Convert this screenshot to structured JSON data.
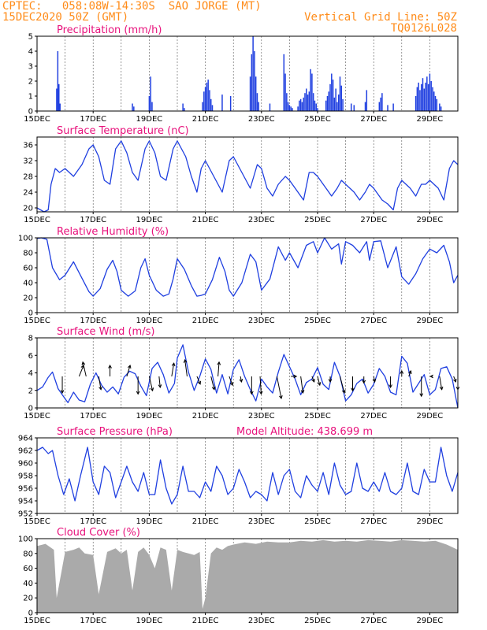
{
  "header": {
    "line1_left": "CPTEC:   058:08W-14:30S  SAO JORGE (MT)",
    "line2_left": "15DEC2020 50Z (GMT)",
    "line1_right": "Vertical Grid Line: 50Z",
    "line2_right": "TQ0126L028"
  },
  "colors": {
    "header": "#ff8c1a",
    "title": "#e8127c",
    "series": "#1f3fe0",
    "cloud": "#aaaaaa",
    "arrow": "#000000"
  },
  "chart_data": [
    {
      "type": "bar",
      "title": "Precipitation (mm/h)",
      "ylim": [
        0,
        5
      ],
      "yticks": [
        0,
        1,
        2,
        3,
        4,
        5
      ],
      "xlim": [
        15,
        30
      ],
      "xtick_labels": [
        "15DEC",
        "17DEC",
        "19DEC",
        "21DEC",
        "23DEC",
        "25DEC",
        "27DEC",
        "29DEC"
      ],
      "xtick_days": [
        15,
        17,
        19,
        21,
        23,
        25,
        27,
        29
      ],
      "bar_width_days": 0.0417,
      "x": [
        15.7,
        15.74,
        15.78,
        15.82,
        18.4,
        18.45,
        19.0,
        19.05,
        19.1,
        20.2,
        20.25,
        20.9,
        20.95,
        21.0,
        21.05,
        21.1,
        21.15,
        21.2,
        21.25,
        21.6,
        21.9,
        22.6,
        22.65,
        22.7,
        22.75,
        22.8,
        22.85,
        22.9,
        23.3,
        23.8,
        23.85,
        23.9,
        23.95,
        24.0,
        24.05,
        24.1,
        24.3,
        24.35,
        24.4,
        24.45,
        24.5,
        24.55,
        24.6,
        24.65,
        24.7,
        24.75,
        24.8,
        24.85,
        24.9,
        24.95,
        25.0,
        25.3,
        25.35,
        25.4,
        25.45,
        25.5,
        25.55,
        25.6,
        25.65,
        25.7,
        25.75,
        25.8,
        25.85,
        25.9,
        26.2,
        26.3,
        26.7,
        26.75,
        27.2,
        27.25,
        27.3,
        27.5,
        27.7,
        28.5,
        28.55,
        28.6,
        28.65,
        28.7,
        28.75,
        28.8,
        28.85,
        28.9,
        28.95,
        29.0,
        29.05,
        29.1,
        29.15,
        29.2,
        29.25,
        29.35,
        29.4
      ],
      "values": [
        1.5,
        4.0,
        1.8,
        0.5,
        0.5,
        0.3,
        1.0,
        2.3,
        0.6,
        0.5,
        0.2,
        0.6,
        1.3,
        1.6,
        1.9,
        2.1,
        1.4,
        0.8,
        0.4,
        1.1,
        1.0,
        2.3,
        3.8,
        5.0,
        4.0,
        2.3,
        1.2,
        0.6,
        0.5,
        3.8,
        2.5,
        1.2,
        0.6,
        0.4,
        0.3,
        0.2,
        0.3,
        0.7,
        0.8,
        0.6,
        0.9,
        1.2,
        1.5,
        1.1,
        1.3,
        2.8,
        2.5,
        1.2,
        0.7,
        0.5,
        0.2,
        0.7,
        1.0,
        1.3,
        1.8,
        2.5,
        2.1,
        0.9,
        1.5,
        0.6,
        1.1,
        2.3,
        1.7,
        0.8,
        0.5,
        0.4,
        0.6,
        1.4,
        0.6,
        0.9,
        1.2,
        0.4,
        0.5,
        1.0,
        1.6,
        1.9,
        1.4,
        1.8,
        2.2,
        1.5,
        1.9,
        2.3,
        1.8,
        2.5,
        2.0,
        1.6,
        1.3,
        1.0,
        0.8,
        0.5,
        0.3
      ]
    },
    {
      "type": "line",
      "title": "Surface Temperature (nC)",
      "ylim": [
        19,
        38
      ],
      "yticks": [
        20,
        24,
        28,
        32,
        36
      ],
      "xlim": [
        15,
        30
      ],
      "xtick_labels": [
        "15DEC",
        "17DEC",
        "19DEC",
        "21DEC",
        "23DEC",
        "25DEC",
        "27DEC",
        "29DEC"
      ],
      "xtick_days": [
        15,
        17,
        19,
        21,
        23,
        25,
        27,
        29
      ],
      "x": [
        15.0,
        15.25,
        15.4,
        15.5,
        15.65,
        15.8,
        16.0,
        16.3,
        16.6,
        16.85,
        17.0,
        17.2,
        17.4,
        17.6,
        17.8,
        18.0,
        18.2,
        18.4,
        18.6,
        18.85,
        19.0,
        19.2,
        19.4,
        19.6,
        19.85,
        20.0,
        20.3,
        20.5,
        20.7,
        20.85,
        21.0,
        21.3,
        21.6,
        21.85,
        22.0,
        22.3,
        22.6,
        22.85,
        23.0,
        23.2,
        23.4,
        23.6,
        23.85,
        24.0,
        24.3,
        24.5,
        24.7,
        24.85,
        25.0,
        25.3,
        25.5,
        25.7,
        25.85,
        26.0,
        26.3,
        26.5,
        26.7,
        26.85,
        27.0,
        27.3,
        27.5,
        27.7,
        27.85,
        28.0,
        28.3,
        28.5,
        28.7,
        28.85,
        29.0,
        29.3,
        29.5,
        29.7,
        29.85,
        30.0
      ],
      "values": [
        20,
        19,
        19.5,
        26,
        30,
        29,
        30,
        28,
        31,
        35,
        36,
        33,
        27,
        26,
        35,
        37,
        34,
        29,
        27,
        35,
        37,
        34,
        28,
        27,
        35,
        37,
        33,
        28,
        24,
        30,
        32,
        28,
        24,
        32,
        33,
        29,
        25,
        31,
        30,
        25,
        23,
        26,
        28,
        27,
        24,
        22,
        29,
        29,
        28,
        25,
        23,
        25,
        27,
        26,
        24,
        22,
        24,
        26,
        25,
        22,
        21,
        19.5,
        25,
        27,
        25,
        23,
        26,
        26,
        27,
        25,
        22,
        30,
        32,
        31
      ]
    },
    {
      "type": "line",
      "title": "Relative Humidity (%)",
      "ylim": [
        0,
        100
      ],
      "yticks": [
        0,
        20,
        40,
        60,
        80,
        100
      ],
      "xlim": [
        15,
        30
      ],
      "xtick_labels": [
        "15DEC",
        "17DEC",
        "19DEC",
        "21DEC",
        "23DEC",
        "25DEC",
        "27DEC",
        "29DEC"
      ],
      "xtick_days": [
        15,
        17,
        19,
        21,
        23,
        25,
        27,
        29
      ],
      "x": [
        15.0,
        15.15,
        15.35,
        15.55,
        15.8,
        16.0,
        16.3,
        16.6,
        16.85,
        17.0,
        17.25,
        17.5,
        17.7,
        17.85,
        18.0,
        18.25,
        18.5,
        18.7,
        18.85,
        19.0,
        19.25,
        19.5,
        19.7,
        19.85,
        20.0,
        20.25,
        20.5,
        20.7,
        20.85,
        21.0,
        21.25,
        21.5,
        21.7,
        21.85,
        22.0,
        22.3,
        22.6,
        22.8,
        23.0,
        23.3,
        23.6,
        23.85,
        24.0,
        24.3,
        24.6,
        24.85,
        25.0,
        25.25,
        25.5,
        25.75,
        25.85,
        26.0,
        26.25,
        26.5,
        26.75,
        26.85,
        27.0,
        27.25,
        27.5,
        27.8,
        28.0,
        28.25,
        28.5,
        28.75,
        29.0,
        29.25,
        29.5,
        29.7,
        29.85,
        30.0
      ],
      "values": [
        99,
        100,
        98,
        60,
        44,
        50,
        68,
        46,
        28,
        22,
        32,
        58,
        70,
        55,
        30,
        22,
        29,
        60,
        72,
        50,
        30,
        22,
        25,
        45,
        72,
        58,
        36,
        22,
        23,
        25,
        44,
        74,
        55,
        30,
        22,
        40,
        78,
        68,
        30,
        45,
        88,
        70,
        80,
        60,
        90,
        95,
        80,
        100,
        85,
        92,
        65,
        95,
        90,
        80,
        95,
        70,
        95,
        96,
        60,
        88,
        48,
        38,
        52,
        72,
        85,
        80,
        90,
        68,
        40,
        50
      ]
    },
    {
      "type": "line",
      "title": "Surface Wind (m/s)",
      "ylim": [
        0,
        8
      ],
      "yticks": [
        0,
        2,
        4,
        6,
        8
      ],
      "xlim": [
        15,
        30
      ],
      "xtick_labels": [
        "15DEC",
        "17DEC",
        "19DEC",
        "21DEC",
        "23DEC",
        "25DEC",
        "27DEC",
        "29DEC"
      ],
      "xtick_days": [
        15,
        17,
        19,
        21,
        23,
        25,
        27,
        29
      ],
      "x": [
        15.0,
        15.2,
        15.4,
        15.55,
        15.75,
        15.9,
        16.1,
        16.3,
        16.5,
        16.7,
        16.9,
        17.1,
        17.3,
        17.5,
        17.7,
        17.9,
        18.1,
        18.3,
        18.5,
        18.7,
        18.9,
        19.1,
        19.3,
        19.5,
        19.7,
        19.9,
        20.0,
        20.2,
        20.4,
        20.6,
        20.8,
        21.0,
        21.2,
        21.4,
        21.6,
        21.8,
        22.0,
        22.2,
        22.4,
        22.6,
        22.8,
        23.0,
        23.2,
        23.4,
        23.6,
        23.8,
        24.0,
        24.2,
        24.4,
        24.6,
        24.8,
        25.0,
        25.2,
        25.4,
        25.6,
        25.8,
        26.0,
        26.2,
        26.4,
        26.6,
        26.8,
        27.0,
        27.2,
        27.4,
        27.6,
        27.8,
        28.0,
        28.2,
        28.4,
        28.6,
        28.8,
        29.0,
        29.2,
        29.4,
        29.6,
        29.8,
        30.0
      ],
      "values": [
        2.0,
        2.4,
        3.5,
        4.1,
        2.2,
        1.5,
        0.6,
        1.8,
        0.9,
        0.7,
        2.7,
        4.0,
        2.6,
        1.8,
        2.4,
        1.6,
        3.5,
        4.2,
        3.9,
        2.5,
        1.4,
        4.5,
        5.2,
        3.8,
        1.7,
        2.8,
        5.7,
        7.2,
        4.1,
        2.0,
        3.6,
        5.6,
        4.4,
        1.7,
        3.8,
        1.6,
        4.4,
        5.5,
        3.6,
        2.1,
        0.8,
        3.3,
        2.4,
        1.7,
        4.1,
        6.1,
        4.7,
        3.3,
        1.5,
        2.9,
        3.3,
        4.6,
        2.7,
        2.1,
        5.2,
        3.6,
        0.8,
        1.5,
        2.8,
        3.3,
        1.7,
        2.7,
        4.5,
        3.6,
        1.8,
        1.5,
        5.9,
        5.1,
        1.8,
        2.8,
        3.8,
        1.5,
        2.1,
        4.5,
        4.7,
        3.3,
        0.0
      ],
      "arrows": [
        {
          "x": 15.9,
          "dx": 0.0,
          "dy": -1.5
        },
        {
          "x": 16.5,
          "dx": 0.4,
          "dy": 1.0
        },
        {
          "x": 16.75,
          "dx": -0.3,
          "dy": 1.3
        },
        {
          "x": 17.2,
          "dx": 0.2,
          "dy": -1.2
        },
        {
          "x": 17.6,
          "dx": 0.0,
          "dy": 1.0
        },
        {
          "x": 18.2,
          "dx": 0.3,
          "dy": 1.0
        },
        {
          "x": 18.6,
          "dx": 0.0,
          "dy": -1.6
        },
        {
          "x": 19.0,
          "dx": 0.3,
          "dy": -1.3
        },
        {
          "x": 19.35,
          "dx": 0.1,
          "dy": -1.0
        },
        {
          "x": 19.8,
          "dx": 0.2,
          "dy": 1.2
        },
        {
          "x": 20.35,
          "dx": -0.2,
          "dy": 1.5
        },
        {
          "x": 20.7,
          "dx": 0.3,
          "dy": -0.7
        },
        {
          "x": 21.2,
          "dx": 0.3,
          "dy": -1.2
        },
        {
          "x": 21.45,
          "dx": 0.1,
          "dy": 1.3
        },
        {
          "x": 21.85,
          "dx": 0.3,
          "dy": -0.8
        },
        {
          "x": 22.25,
          "dx": 0.1,
          "dy": -0.5
        },
        {
          "x": 22.65,
          "dx": 0.0,
          "dy": -1.6
        },
        {
          "x": 22.95,
          "dx": 0.1,
          "dy": -1.6
        },
        {
          "x": 23.55,
          "dx": 0.4,
          "dy": -2.0
        },
        {
          "x": 24.05,
          "dx": 0.5,
          "dy": 0.0
        },
        {
          "x": 24.4,
          "dx": 0.2,
          "dy": -1.5
        },
        {
          "x": 24.8,
          "dx": 0.2,
          "dy": -0.5
        },
        {
          "x": 25.0,
          "dx": 0.2,
          "dy": -0.8
        },
        {
          "x": 25.45,
          "dx": 0.0,
          "dy": -0.5
        },
        {
          "x": 25.8,
          "dx": 0.4,
          "dy": -1.5
        },
        {
          "x": 26.25,
          "dx": 0.0,
          "dy": -1.3
        },
        {
          "x": 26.65,
          "dx": 0.0,
          "dy": -0.6
        },
        {
          "x": 27.0,
          "dx": 0.1,
          "dy": -0.5
        },
        {
          "x": 27.6,
          "dx": 0.0,
          "dy": -1.0
        },
        {
          "x": 28.0,
          "dx": 0.0,
          "dy": 0.5
        },
        {
          "x": 28.25,
          "dx": 0.2,
          "dy": 0.5
        },
        {
          "x": 28.7,
          "dx": 0.0,
          "dy": -1.8
        },
        {
          "x": 29.1,
          "dx": -0.2,
          "dy": 0.0
        },
        {
          "x": 29.35,
          "dx": 0.2,
          "dy": -1.2
        },
        {
          "x": 29.85,
          "dx": 0.2,
          "dy": -0.5
        },
        {
          "x": 30.0,
          "dx": 0.0,
          "dy": -1.2
        }
      ]
    },
    {
      "type": "line",
      "title": "Surface Pressure (hPa)",
      "annotation": "Model Altitude: 438.699 m",
      "ylim": [
        952,
        964
      ],
      "yticks": [
        952,
        954,
        956,
        958,
        960,
        962,
        964
      ],
      "xlim": [
        15,
        30
      ],
      "xtick_labels": [
        "15DEC",
        "17DEC",
        "19DEC",
        "21DEC",
        "23DEC",
        "25DEC",
        "27DEC",
        "29DEC"
      ],
      "xtick_days": [
        15,
        17,
        19,
        21,
        23,
        25,
        27,
        29
      ],
      "x": [
        15.0,
        15.2,
        15.4,
        15.55,
        15.75,
        15.95,
        16.15,
        16.35,
        16.55,
        16.8,
        17.0,
        17.2,
        17.4,
        17.6,
        17.8,
        18.0,
        18.2,
        18.4,
        18.6,
        18.8,
        19.0,
        19.2,
        19.4,
        19.6,
        19.8,
        20.0,
        20.2,
        20.4,
        20.6,
        20.8,
        21.0,
        21.2,
        21.4,
        21.6,
        21.8,
        22.0,
        22.2,
        22.4,
        22.6,
        22.8,
        23.0,
        23.2,
        23.4,
        23.6,
        23.8,
        24.0,
        24.2,
        24.4,
        24.6,
        24.8,
        25.0,
        25.2,
        25.4,
        25.6,
        25.8,
        26.0,
        26.2,
        26.4,
        26.6,
        26.8,
        27.0,
        27.2,
        27.4,
        27.6,
        27.8,
        28.0,
        28.2,
        28.4,
        28.6,
        28.8,
        29.0,
        29.2,
        29.4,
        29.6,
        29.8,
        30.0
      ],
      "values": [
        962,
        962.5,
        961.5,
        962,
        958,
        955,
        957.5,
        954,
        958,
        962.5,
        957,
        955,
        959.5,
        958.5,
        954.5,
        957,
        959.5,
        957,
        955.5,
        958.5,
        955,
        955,
        960.5,
        956,
        953.5,
        955,
        959.5,
        955.5,
        955.5,
        954.5,
        957,
        955.5,
        959.5,
        958,
        955,
        956,
        959,
        957,
        954.5,
        955.5,
        955,
        954,
        958.5,
        955,
        958,
        959,
        955.5,
        954.5,
        958,
        956.5,
        955.5,
        958.5,
        955,
        960,
        956.5,
        955,
        955.5,
        960,
        956,
        955.5,
        957,
        955.5,
        958.5,
        955.5,
        955,
        956,
        960,
        955.5,
        955,
        959,
        957,
        957,
        962.5,
        958,
        955.5,
        958.5
      ]
    },
    {
      "type": "area",
      "title": "Cloud Cover (%)",
      "ylim": [
        0,
        100
      ],
      "yticks": [
        0,
        20,
        40,
        60,
        80,
        100
      ],
      "xlim": [
        15,
        30
      ],
      "xtick_labels": [
        "15DEC",
        "17DEC",
        "19DEC",
        "21DEC",
        "23DEC",
        "25DEC",
        "27DEC",
        "29DEC"
      ],
      "xtick_days": [
        15,
        17,
        19,
        21,
        23,
        25,
        27,
        29
      ],
      "x": [
        15.0,
        15.3,
        15.6,
        15.7,
        16.0,
        16.3,
        16.5,
        16.7,
        17.0,
        17.2,
        17.5,
        17.8,
        18.0,
        18.2,
        18.4,
        18.6,
        18.8,
        19.0,
        19.2,
        19.4,
        19.6,
        19.8,
        20.0,
        20.2,
        20.4,
        20.6,
        20.8,
        20.9,
        21.0,
        21.2,
        21.4,
        21.6,
        21.8,
        22.0,
        22.4,
        22.8,
        23.2,
        23.6,
        24.0,
        24.4,
        24.8,
        25.2,
        25.6,
        26.0,
        26.4,
        26.8,
        27.2,
        27.6,
        28.0,
        28.4,
        28.8,
        29.2,
        29.6,
        30.0
      ],
      "values": [
        90,
        93,
        85,
        20,
        82,
        85,
        88,
        80,
        78,
        25,
        82,
        87,
        80,
        85,
        30,
        82,
        88,
        78,
        60,
        88,
        85,
        30,
        85,
        82,
        80,
        78,
        82,
        5,
        20,
        80,
        88,
        85,
        90,
        92,
        95,
        93,
        96,
        95,
        95,
        97,
        96,
        98,
        96,
        97,
        96,
        98,
        97,
        96,
        98,
        97,
        96,
        97,
        92,
        85
      ]
    }
  ]
}
